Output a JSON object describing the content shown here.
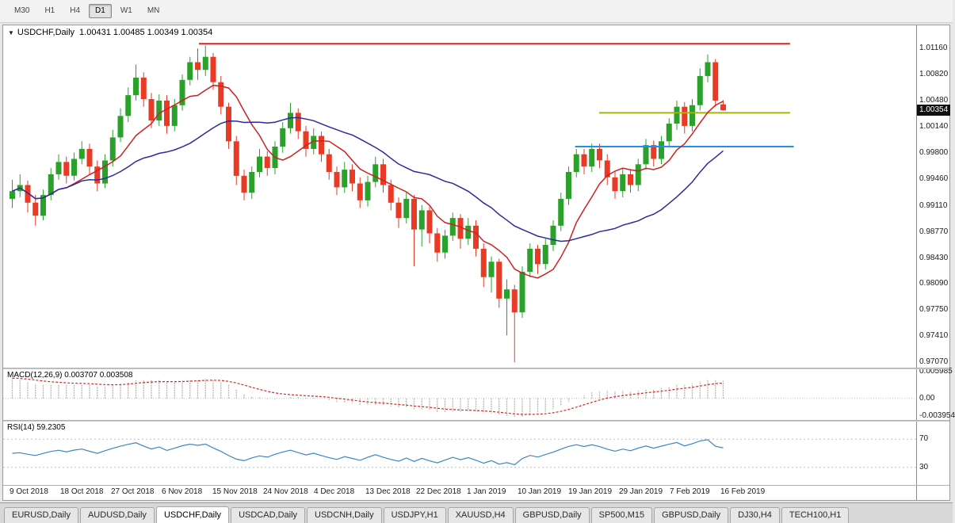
{
  "toolbar": {
    "timeframes": [
      {
        "label": "M30",
        "active": false
      },
      {
        "label": "H1",
        "active": false
      },
      {
        "label": "H4",
        "active": false
      },
      {
        "label": "D1",
        "active": true
      },
      {
        "label": "W1",
        "active": false
      },
      {
        "label": "MN",
        "active": false
      }
    ]
  },
  "chart_header": {
    "symbol": "USDCHF,Daily",
    "ohlc": "1.00431 1.00485 1.00349 1.00354"
  },
  "panels": {
    "macd_label": "MACD(12,26,9) 0.003707 0.003508",
    "rsi_label": "RSI(14) 59.2305"
  },
  "price_scale": {
    "current_badge": "1.00354"
  },
  "tabs": [
    {
      "label": "EURUSD,Daily",
      "active": false
    },
    {
      "label": "AUDUSD,Daily",
      "active": false
    },
    {
      "label": "USDCHF,Daily",
      "active": true
    },
    {
      "label": "USDCAD,Daily",
      "active": false
    },
    {
      "label": "USDCNH,Daily",
      "active": false
    },
    {
      "label": "USDJPY,H1",
      "active": false
    },
    {
      "label": "XAUUSD,H4",
      "active": false
    },
    {
      "label": "GBPUSD,Daily",
      "active": false
    },
    {
      "label": "SP500,M15",
      "active": false
    },
    {
      "label": "GBPUSD,Daily",
      "active": false
    },
    {
      "label": "DJ30,H4",
      "active": false
    },
    {
      "label": "TECH100,H1",
      "active": false
    }
  ],
  "chart_data": {
    "type": "candlestick",
    "symbol": "USDCHF",
    "timeframe": "Daily",
    "last_ohlc": {
      "open": 1.00431,
      "high": 1.00485,
      "low": 1.00349,
      "close": 1.00354
    },
    "price_range": [
      0.97,
      1.0146
    ],
    "y_tick_labels": [
      "1.01160",
      "1.00820",
      "1.00480",
      "1.00140",
      "0.99800",
      "0.99460",
      "0.99110",
      "0.98770",
      "0.98430",
      "0.98090",
      "0.97750",
      "0.97410",
      "0.97070"
    ],
    "x_labels": [
      "9 Oct 2018",
      "18 Oct 2018",
      "27 Oct 2018",
      "6 Nov 2018",
      "15 Nov 2018",
      "24 Nov 2018",
      "4 Dec 2018",
      "13 Dec 2018",
      "22 Dec 2018",
      "1 Jan 2019",
      "10 Jan 2019",
      "19 Jan 2019",
      "29 Jan 2019",
      "7 Feb 2019",
      "16 Feb 2019"
    ],
    "colors": {
      "up": "#2aa12a",
      "down": "#e93a25",
      "background": "#ffffff"
    },
    "moving_averages": [
      {
        "period": 8,
        "color": "#cc2222"
      },
      {
        "period": 24,
        "color": "#2b2b9e"
      }
    ],
    "horizontal_lines": [
      {
        "name": "resistance-line",
        "price": 1.0122,
        "color": "#e01f1f",
        "from_index": 24.5,
        "to_index": 101
      },
      {
        "name": "minor-resistance-line",
        "price": 1.0032,
        "color": "#a9b408",
        "from_index": 76.3,
        "to_index": 101
      },
      {
        "name": "support-line",
        "price": 0.9988,
        "color": "#1f8fe8",
        "from_index": 73.2,
        "to_index": 101.5
      }
    ],
    "macd": {
      "fast": 12,
      "slow": 26,
      "signal": 9,
      "value": 0.003707,
      "signal_value": 0.003508,
      "range": [
        -0.0048,
        0.0065
      ],
      "scale_ticks": [
        {
          "text": "0.005985",
          "value": 0.005985
        },
        {
          "text": "0.00",
          "value": 0
        },
        {
          "text": "-0.003954",
          "value": -0.003954
        }
      ],
      "histogram_color": "#b6b6b6",
      "signal_color": "#d22a2a"
    },
    "rsi": {
      "period": 14,
      "value": 59.2305,
      "range": [
        5,
        95
      ],
      "levels": [
        70,
        30
      ],
      "scale_ticks": [
        {
          "text": "70",
          "value": 70
        },
        {
          "text": "30",
          "value": 30
        }
      ],
      "color": "#3b86c4"
    },
    "ohlc": [
      [
        0.992,
        0.9945,
        0.9908,
        0.993
      ],
      [
        0.993,
        0.9952,
        0.9922,
        0.9938
      ],
      [
        0.9938,
        0.9944,
        0.9902,
        0.9915
      ],
      [
        0.9915,
        0.9925,
        0.9885,
        0.9898
      ],
      [
        0.9898,
        0.9932,
        0.9892,
        0.9925
      ],
      [
        0.9925,
        0.996,
        0.9918,
        0.9952
      ],
      [
        0.9952,
        0.9978,
        0.9945,
        0.9968
      ],
      [
        0.9968,
        0.9975,
        0.994,
        0.995
      ],
      [
        0.995,
        0.998,
        0.9944,
        0.9972
      ],
      [
        0.9972,
        0.9995,
        0.9965,
        0.9985
      ],
      [
        0.9985,
        0.9992,
        0.9952,
        0.9962
      ],
      [
        0.9962,
        0.997,
        0.993,
        0.994
      ],
      [
        0.994,
        0.9978,
        0.9934,
        0.997
      ],
      [
        0.997,
        1.001,
        0.9962,
        1.0
      ],
      [
        1.0,
        1.0038,
        0.9994,
        1.0028
      ],
      [
        1.0028,
        1.0065,
        1.002,
        1.0055
      ],
      [
        1.0055,
        1.0095,
        1.0048,
        1.0078
      ],
      [
        1.0078,
        1.0085,
        1.004,
        1.005
      ],
      [
        1.005,
        1.0058,
        1.0012,
        1.0022
      ],
      [
        1.0022,
        1.0056,
        1.0015,
        1.0048
      ],
      [
        1.0048,
        1.0055,
        1.0005,
        1.0015
      ],
      [
        1.0015,
        1.005,
        1.0008,
        1.0042
      ],
      [
        1.0042,
        1.0082,
        1.0035,
        1.0075
      ],
      [
        1.0075,
        1.0105,
        1.0068,
        1.0098
      ],
      [
        1.0098,
        1.0116,
        1.0075,
        1.0088
      ],
      [
        1.0088,
        1.012,
        1.008,
        1.0105
      ],
      [
        1.0105,
        1.011,
        1.0062,
        1.0072
      ],
      [
        1.0072,
        1.008,
        1.003,
        1.004
      ],
      [
        1.004,
        1.0045,
        0.9985,
        0.9995
      ],
      [
        0.9995,
        1.0002,
        0.9938,
        0.995
      ],
      [
        0.995,
        0.9958,
        0.9918,
        0.9928
      ],
      [
        0.9928,
        0.9962,
        0.992,
        0.9955
      ],
      [
        0.9955,
        0.9985,
        0.9948,
        0.9975
      ],
      [
        0.9975,
        0.9982,
        0.995,
        0.996
      ],
      [
        0.996,
        0.9995,
        0.9952,
        0.9988
      ],
      [
        0.9988,
        1.002,
        0.998,
        1.0012
      ],
      [
        1.0012,
        1.0045,
        1.0005,
        1.0032
      ],
      [
        1.0032,
        1.0038,
        0.9998,
        1.0008
      ],
      [
        1.0008,
        1.0015,
        0.9975,
        0.9985
      ],
      [
        0.9985,
        1.0012,
        0.9978,
        1.0002
      ],
      [
        1.0002,
        1.0008,
        0.9968,
        0.9978
      ],
      [
        0.9978,
        0.9985,
        0.9945,
        0.9955
      ],
      [
        0.9955,
        0.9962,
        0.9925,
        0.9935
      ],
      [
        0.9935,
        0.9968,
        0.9928,
        0.9958
      ],
      [
        0.9958,
        0.9965,
        0.993,
        0.994
      ],
      [
        0.994,
        0.9948,
        0.9908,
        0.9918
      ],
      [
        0.9918,
        0.995,
        0.991,
        0.9942
      ],
      [
        0.9942,
        0.9975,
        0.9935,
        0.9965
      ],
      [
        0.9965,
        0.9972,
        0.9928,
        0.9938
      ],
      [
        0.9938,
        0.9945,
        0.9905,
        0.9915
      ],
      [
        0.9915,
        0.9922,
        0.9882,
        0.9895
      ],
      [
        0.9895,
        0.9928,
        0.9888,
        0.992
      ],
      [
        0.992,
        0.9925,
        0.9832,
        0.988
      ],
      [
        0.988,
        0.9912,
        0.9858,
        0.9905
      ],
      [
        0.9905,
        0.991,
        0.9862,
        0.9875
      ],
      [
        0.9875,
        0.9882,
        0.9838,
        0.985
      ],
      [
        0.985,
        0.988,
        0.9842,
        0.9872
      ],
      [
        0.9872,
        0.9902,
        0.9865,
        0.9895
      ],
      [
        0.9895,
        0.99,
        0.9855,
        0.9868
      ],
      [
        0.9868,
        0.9895,
        0.986,
        0.9885
      ],
      [
        0.9885,
        0.9892,
        0.9845,
        0.9855
      ],
      [
        0.9855,
        0.9862,
        0.9805,
        0.9818
      ],
      [
        0.9818,
        0.9845,
        0.9798,
        0.9838
      ],
      [
        0.9838,
        0.9842,
        0.9778,
        0.979
      ],
      [
        0.979,
        0.9815,
        0.9742,
        0.9802
      ],
      [
        0.9802,
        0.9808,
        0.9707,
        0.9772
      ],
      [
        0.9772,
        0.9832,
        0.9765,
        0.9825
      ],
      [
        0.9825,
        0.9862,
        0.9818,
        0.9855
      ],
      [
        0.9855,
        0.986,
        0.9822,
        0.9835
      ],
      [
        0.9835,
        0.9868,
        0.9828,
        0.986
      ],
      [
        0.986,
        0.9892,
        0.9852,
        0.9885
      ],
      [
        0.9885,
        0.9928,
        0.9878,
        0.992
      ],
      [
        0.992,
        0.9962,
        0.9912,
        0.9955
      ],
      [
        0.9955,
        0.9985,
        0.9948,
        0.9978
      ],
      [
        0.9978,
        0.9985,
        0.9952,
        0.9962
      ],
      [
        0.9962,
        0.9992,
        0.9955,
        0.9985
      ],
      [
        0.9985,
        0.9992,
        0.996,
        0.997
      ],
      [
        0.997,
        0.9978,
        0.9938,
        0.9948
      ],
      [
        0.9948,
        0.9955,
        0.992,
        0.993
      ],
      [
        0.993,
        0.996,
        0.9922,
        0.9952
      ],
      [
        0.9952,
        0.9958,
        0.9928,
        0.9938
      ],
      [
        0.9938,
        0.9972,
        0.993,
        0.9965
      ],
      [
        0.9965,
        0.9998,
        0.9958,
        0.999
      ],
      [
        0.999,
        0.9996,
        0.9962,
        0.9972
      ],
      [
        0.9972,
        1.0002,
        0.9965,
        0.9995
      ],
      [
        0.9995,
        1.0025,
        0.9988,
        1.0018
      ],
      [
        1.0018,
        1.0048,
        1.001,
        1.004
      ],
      [
        1.004,
        1.0046,
        1.0005,
        1.0015
      ],
      [
        1.0015,
        1.005,
        1.0008,
        1.0042
      ],
      [
        1.0042,
        1.009,
        1.0035,
        1.008
      ],
      [
        1.008,
        1.0108,
        1.0072,
        1.0098
      ],
      [
        1.0098,
        1.0102,
        1.004,
        1.0048
      ],
      [
        1.00431,
        1.00485,
        1.00349,
        1.00354
      ]
    ]
  }
}
